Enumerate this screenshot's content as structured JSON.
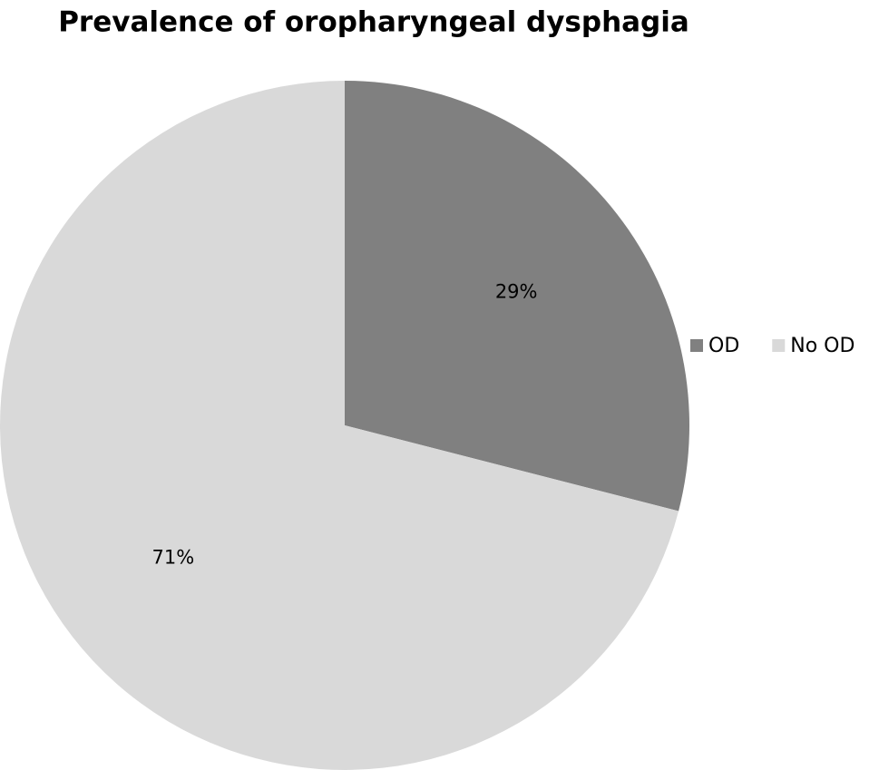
{
  "chart_data": {
    "type": "pie",
    "title": "Prevalence of oropharyngeal dysphagia",
    "categories": [
      "OD",
      "No OD"
    ],
    "values": [
      29,
      71
    ],
    "value_labels": [
      "29%",
      "71%"
    ],
    "colors": [
      "#808080",
      "#d9d9d9"
    ],
    "legend": "right"
  }
}
